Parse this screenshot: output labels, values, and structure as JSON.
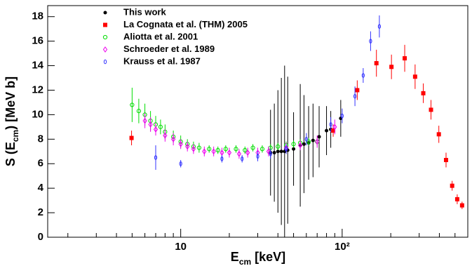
{
  "chart_data": {
    "type": "scatter",
    "xlabel": "E_{cm} [keV]",
    "ylabel": "S (E_{cm}) [MeV b]",
    "xscale": "log",
    "xlim": [
      1.5,
      600
    ],
    "ylim": [
      0,
      18.9
    ],
    "xticks": [
      10,
      {
        "value": 100,
        "label": "10²"
      }
    ],
    "yticks": [
      0,
      2,
      4,
      6,
      8,
      10,
      12,
      14,
      16,
      18
    ],
    "legend": "upper left",
    "series": [
      {
        "name": "This work",
        "color": "#000000",
        "marker": "circle-filled",
        "x": [
          36,
          38,
          40,
          42,
          44,
          46,
          50,
          55,
          58,
          62,
          66,
          72,
          80,
          85,
          98
        ],
        "values": [
          6.9,
          6.9,
          7.0,
          7.0,
          7.0,
          7.1,
          7.2,
          7.5,
          7.6,
          7.7,
          7.9,
          8.2,
          8.7,
          8.8,
          9.7
        ],
        "errors": [
          3.5,
          4,
          5,
          6,
          7,
          6,
          3,
          5,
          4,
          3,
          3,
          2.5,
          2,
          1.5,
          1.5
        ]
      },
      {
        "name": "La Cognata et al. (THM) 2005",
        "color": "#ff0000",
        "marker": "square-filled",
        "x": [
          4.96,
          88,
          124,
          163,
          202,
          244,
          283,
          318,
          355,
          397,
          440,
          480,
          516,
          553
        ],
        "values": [
          8.1,
          8.7,
          12.0,
          14.2,
          13.9,
          14.6,
          13.1,
          11.75,
          10.4,
          8.4,
          6.3,
          4.2,
          3.1,
          2.6
        ],
        "errors": [
          0.6,
          0.5,
          0.8,
          1.1,
          1.0,
          1.1,
          1.0,
          0.8,
          0.8,
          0.7,
          0.6,
          0.4,
          0.4,
          0.3
        ]
      },
      {
        "name": "Aliotta et al. 2001",
        "color": "#00dd00",
        "marker": "circle-open",
        "x": [
          5.0,
          5.5,
          6,
          6.5,
          7,
          7.5,
          8,
          9,
          10,
          11,
          12,
          13,
          15,
          17,
          19,
          22,
          25,
          28,
          32,
          36,
          40,
          45,
          50,
          55,
          62,
          70
        ],
        "values": [
          10.8,
          10.3,
          10.0,
          9.5,
          9.2,
          9.0,
          8.6,
          8.2,
          7.8,
          7.6,
          7.4,
          7.3,
          7.2,
          7.1,
          7.2,
          7.2,
          7.1,
          7.3,
          7.2,
          7.3,
          7.4,
          7.5,
          7.6,
          7.7,
          7.8,
          7.8
        ],
        "errors": [
          1.4,
          1.0,
          0.9,
          0.8,
          0.7,
          0.6,
          0.6,
          0.5,
          0.5,
          0.4,
          0.4,
          0.4,
          0.3,
          0.3,
          0.3,
          0.3,
          0.3,
          0.3,
          0.3,
          0.3,
          0.3,
          0.3,
          0.3,
          0.3,
          0.3,
          0.3
        ]
      },
      {
        "name": "Schroeder et al. 1989",
        "color": "#ee00ee",
        "marker": "diamond-open",
        "x": [
          6,
          6.5,
          7,
          8,
          9,
          10,
          11,
          12,
          14,
          16,
          18,
          20,
          23,
          26,
          30,
          35,
          45,
          55,
          70,
          90
        ],
        "values": [
          9.5,
          9.2,
          8.8,
          8.3,
          8.0,
          7.6,
          7.4,
          7.2,
          7.0,
          7.0,
          6.9,
          6.9,
          6.8,
          6.9,
          6.9,
          7.0,
          7.3,
          7.5,
          7.8,
          9.0
        ],
        "errors": [
          0.6,
          0.6,
          0.5,
          0.5,
          0.5,
          0.4,
          0.4,
          0.4,
          0.4,
          0.4,
          0.4,
          0.4,
          0.4,
          0.4,
          0.4,
          0.4,
          0.4,
          0.4,
          0.5,
          0.6
        ]
      },
      {
        "name": "Krauss et al. 1987",
        "color": "#3333ff",
        "marker": "circle-open-small",
        "x": [
          7,
          10,
          18,
          24,
          30,
          36,
          45,
          60,
          85,
          100,
          120,
          135,
          150,
          170
        ],
        "values": [
          6.5,
          6.0,
          6.4,
          6.4,
          6.6,
          6.8,
          7.2,
          8.0,
          9.2,
          9.9,
          11.5,
          13.2,
          16.0,
          17.2
        ],
        "errors": [
          1.0,
          0.3,
          0.3,
          0.3,
          0.4,
          0.4,
          0.4,
          0.5,
          0.6,
          0.6,
          0.8,
          0.6,
          0.8,
          0.9
        ]
      }
    ]
  }
}
